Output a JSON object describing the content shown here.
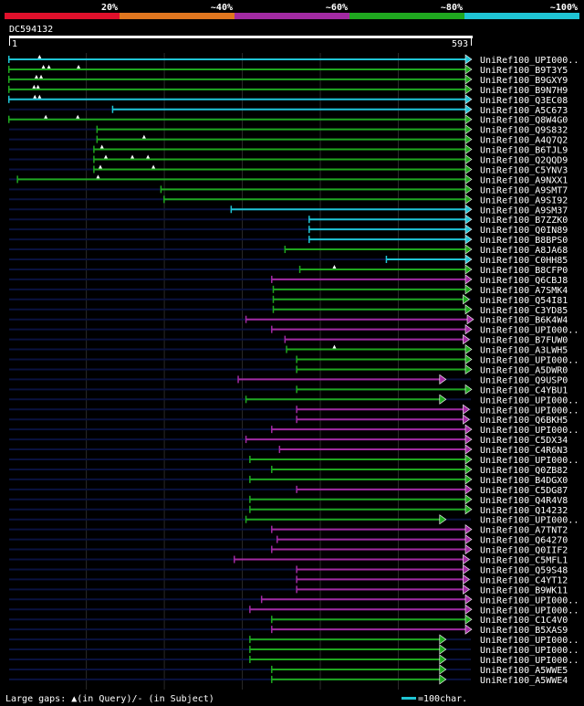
{
  "query_id": "DC594132",
  "colors": {
    "bg": "#000000",
    "blue": "#1fc4d4",
    "green": "#1fa81f",
    "magenta": "#a22aa2",
    "red": "#e0102b",
    "orange": "#e0761f",
    "dark": "#0a1240",
    "white": "#ffffff"
  },
  "legend_bar": [
    {
      "label": "",
      "color": "#e0102b"
    },
    {
      "label": "20%",
      "color": "#e0761f"
    },
    {
      "label": "~40%",
      "color": "#a22aa2"
    },
    {
      "label": "~60%",
      "color": "#1fa81f"
    },
    {
      "label": "~80%",
      "color": "#1fc4d4"
    },
    {
      "label": "~100%",
      "color": ""
    }
  ],
  "footer": {
    "gaps_text": "Large gaps: ▲(in Query)/- (in Subject)",
    "scale_text": "=100char."
  },
  "chart_data": {
    "type": "alignment",
    "title": "DC594132",
    "x_range": [
      1,
      593
    ],
    "x_start_label": "1",
    "x_end_label": "593",
    "hits": [
      {
        "name": "UniRef100_UPI000..",
        "start": 1,
        "end": 593,
        "color": "blue",
        "gaps": [
          40
        ]
      },
      {
        "name": "UniRef100_B9T3Y5",
        "start": 1,
        "end": 593,
        "color": "green",
        "gaps": [
          45,
          52,
          90
        ]
      },
      {
        "name": "UniRef100_B9GXY9",
        "start": 1,
        "end": 593,
        "color": "green",
        "gaps": [
          36,
          42
        ]
      },
      {
        "name": "UniRef100_B9N7H9",
        "start": 1,
        "end": 593,
        "color": "green",
        "gaps": [
          33,
          38
        ]
      },
      {
        "name": "UniRef100_Q3EC08",
        "start": 1,
        "end": 593,
        "color": "blue",
        "gaps": [
          34,
          40
        ]
      },
      {
        "name": "UniRef100_A5C673",
        "start": 134,
        "end": 593,
        "color": "blue",
        "gaps": []
      },
      {
        "name": "UniRef100_Q8W4G0",
        "start": 1,
        "end": 593,
        "color": "green",
        "gaps": [
          48,
          89
        ]
      },
      {
        "name": "UniRef100_Q9S832",
        "start": 114,
        "end": 593,
        "color": "green",
        "gaps": []
      },
      {
        "name": "UniRef100_A4Q7Q2",
        "start": 114,
        "end": 593,
        "color": "green",
        "gaps": [
          174
        ]
      },
      {
        "name": "UniRef100_B6TJL9",
        "start": 110,
        "end": 593,
        "color": "green",
        "gaps": [
          120
        ]
      },
      {
        "name": "UniRef100_Q2QQD9",
        "start": 110,
        "end": 593,
        "color": "green",
        "gaps": [
          125,
          159,
          179
        ]
      },
      {
        "name": "UniRef100_C5YNV3",
        "start": 110,
        "end": 593,
        "color": "green",
        "gaps": [
          118,
          186
        ]
      },
      {
        "name": "UniRef100_A9NXX1",
        "start": 12,
        "end": 593,
        "color": "green",
        "gaps": [
          115
        ]
      },
      {
        "name": "UniRef100_A9SMT7",
        "start": 196,
        "end": 593,
        "color": "green",
        "gaps": []
      },
      {
        "name": "UniRef100_A9SI92",
        "start": 200,
        "end": 593,
        "color": "green",
        "gaps": []
      },
      {
        "name": "UniRef100_A9SM37",
        "start": 286,
        "end": 593,
        "color": "blue",
        "gaps": []
      },
      {
        "name": "UniRef100_B7ZZK0",
        "start": 386,
        "end": 593,
        "color": "blue",
        "gaps": []
      },
      {
        "name": "UniRef100_Q0IN89",
        "start": 386,
        "end": 593,
        "color": "blue",
        "gaps": []
      },
      {
        "name": "UniRef100_B8BPS0",
        "start": 386,
        "end": 593,
        "color": "blue",
        "gaps": []
      },
      {
        "name": "UniRef100_A8JA68",
        "start": 355,
        "end": 593,
        "color": "green",
        "gaps": []
      },
      {
        "name": "UniRef100_C0HH85",
        "start": 485,
        "end": 593,
        "color": "blue",
        "gaps": []
      },
      {
        "name": "UniRef100_B8CFP0",
        "start": 374,
        "end": 593,
        "color": "green",
        "gaps": [
          418
        ]
      },
      {
        "name": "UniRef100_Q6CBJ8",
        "start": 338,
        "end": 593,
        "color": "magenta",
        "gaps": []
      },
      {
        "name": "UniRef100_A7SMK4",
        "start": 340,
        "end": 593,
        "color": "green",
        "gaps": []
      },
      {
        "name": "UniRef100_Q54I81",
        "start": 340,
        "end": 590,
        "color": "green",
        "gaps": []
      },
      {
        "name": "UniRef100_C3YD85",
        "start": 340,
        "end": 593,
        "color": "green",
        "gaps": []
      },
      {
        "name": "UniRef100_B6K4W4",
        "start": 305,
        "end": 597,
        "color": "magenta",
        "gaps": []
      },
      {
        "name": "UniRef100_UPI000..",
        "start": 338,
        "end": 593,
        "color": "magenta",
        "gaps": []
      },
      {
        "name": "UniRef100_B7FUW0",
        "start": 355,
        "end": 590,
        "color": "magenta",
        "gaps": []
      },
      {
        "name": "UniRef100_A3LWH5",
        "start": 357,
        "end": 593,
        "color": "green",
        "gaps": [
          418
        ]
      },
      {
        "name": "UniRef100_UPI000..",
        "start": 370,
        "end": 593,
        "color": "green",
        "gaps": []
      },
      {
        "name": "UniRef100_A5DWR0",
        "start": 370,
        "end": 593,
        "color": "green",
        "gaps": []
      },
      {
        "name": "UniRef100_Q9USP0",
        "start": 295,
        "end": 560,
        "color": "magenta",
        "gaps": []
      },
      {
        "name": "UniRef100_C4YBU1",
        "start": 370,
        "end": 593,
        "color": "green",
        "gaps": []
      },
      {
        "name": "UniRef100_UPI000..",
        "start": 305,
        "end": 560,
        "color": "green",
        "gaps": []
      },
      {
        "name": "UniRef100_UPI000..",
        "start": 370,
        "end": 590,
        "color": "magenta",
        "gaps": []
      },
      {
        "name": "UniRef100_Q6BKH5",
        "start": 370,
        "end": 590,
        "color": "magenta",
        "gaps": []
      },
      {
        "name": "UniRef100_UPI000..",
        "start": 338,
        "end": 593,
        "color": "magenta",
        "gaps": []
      },
      {
        "name": "UniRef100_C5DX34",
        "start": 305,
        "end": 593,
        "color": "magenta",
        "gaps": []
      },
      {
        "name": "UniRef100_C4R6N3",
        "start": 348,
        "end": 593,
        "color": "magenta",
        "gaps": []
      },
      {
        "name": "UniRef100_UPI000..",
        "start": 310,
        "end": 593,
        "color": "green",
        "gaps": []
      },
      {
        "name": "UniRef100_Q0ZB82",
        "start": 338,
        "end": 593,
        "color": "green",
        "gaps": []
      },
      {
        "name": "UniRef100_B4DGX0",
        "start": 310,
        "end": 593,
        "color": "green",
        "gaps": []
      },
      {
        "name": "UniRef100_C5DG87",
        "start": 370,
        "end": 593,
        "color": "magenta",
        "gaps": []
      },
      {
        "name": "UniRef100_Q4R4V8",
        "start": 310,
        "end": 593,
        "color": "green",
        "gaps": []
      },
      {
        "name": "UniRef100_Q14232",
        "start": 310,
        "end": 593,
        "color": "green",
        "gaps": []
      },
      {
        "name": "UniRef100_UPI000..",
        "start": 305,
        "end": 560,
        "color": "green",
        "gaps": []
      },
      {
        "name": "UniRef100_A7TNT2",
        "start": 338,
        "end": 593,
        "color": "magenta",
        "gaps": []
      },
      {
        "name": "UniRef100_Q64270",
        "start": 345,
        "end": 593,
        "color": "magenta",
        "gaps": []
      },
      {
        "name": "UniRef100_Q0IIF2",
        "start": 338,
        "end": 593,
        "color": "magenta",
        "gaps": []
      },
      {
        "name": "UniRef100_C5MFL1",
        "start": 290,
        "end": 590,
        "color": "magenta",
        "gaps": []
      },
      {
        "name": "UniRef100_Q59S48",
        "start": 370,
        "end": 590,
        "color": "magenta",
        "gaps": []
      },
      {
        "name": "UniRef100_C4YT12",
        "start": 370,
        "end": 590,
        "color": "magenta",
        "gaps": []
      },
      {
        "name": "UniRef100_B9WK11",
        "start": 370,
        "end": 590,
        "color": "magenta",
        "gaps": []
      },
      {
        "name": "UniRef100_UPI000..",
        "start": 325,
        "end": 593,
        "color": "magenta",
        "gaps": []
      },
      {
        "name": "UniRef100_UPI000..",
        "start": 310,
        "end": 593,
        "color": "magenta",
        "gaps": []
      },
      {
        "name": "UniRef100_C1C4V0",
        "start": 338,
        "end": 593,
        "color": "green",
        "gaps": []
      },
      {
        "name": "UniRef100_B5XAS9",
        "start": 338,
        "end": 593,
        "color": "magenta",
        "gaps": []
      },
      {
        "name": "UniRef100_UPI000..",
        "start": 310,
        "end": 560,
        "color": "green",
        "gaps": []
      },
      {
        "name": "UniRef100_UPI000..",
        "start": 310,
        "end": 560,
        "color": "green",
        "gaps": []
      },
      {
        "name": "UniRef100_UPI000..",
        "start": 310,
        "end": 560,
        "color": "green",
        "gaps": []
      },
      {
        "name": "UniRef100_A5WWE5",
        "start": 338,
        "end": 560,
        "color": "green",
        "gaps": []
      },
      {
        "name": "UniRef100_A5WWE4",
        "start": 338,
        "end": 560,
        "color": "green",
        "gaps": []
      }
    ]
  }
}
